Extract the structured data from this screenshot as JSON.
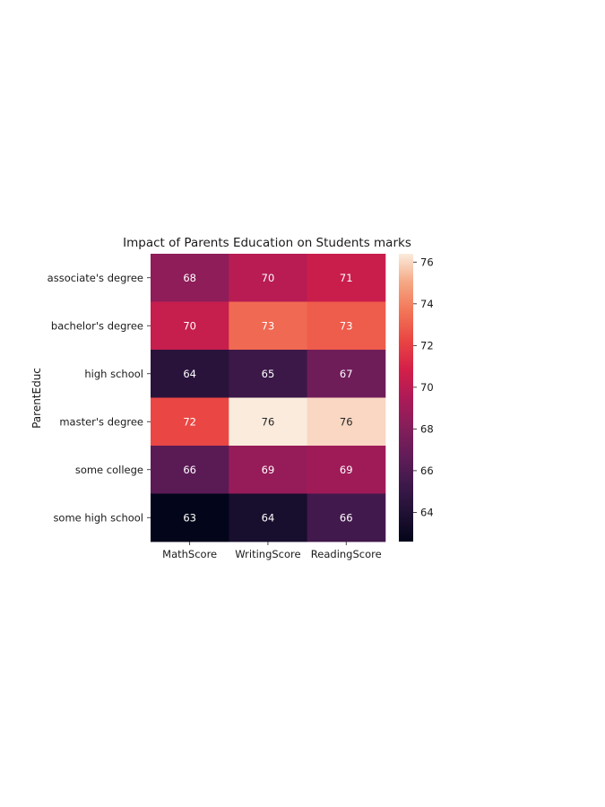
{
  "chart_data": {
    "type": "heatmap",
    "title": "Impact of Parents Education on Students marks",
    "xlabel": "",
    "ylabel": "ParentEduc",
    "columns": [
      "MathScore",
      "WritingScore",
      "ReadingScore"
    ],
    "rows": [
      "associate's degree",
      "bachelor's degree",
      "high school",
      "master's degree",
      "some college",
      "some high school"
    ],
    "values": [
      [
        68.4,
        69.9,
        70.5
      ],
      [
        70.4,
        73.3,
        72.9
      ],
      [
        64.4,
        65.2,
        67.2
      ],
      [
        72.3,
        76.4,
        76.0
      ],
      [
        66.4,
        68.7,
        69.0
      ],
      [
        62.6,
        63.6,
        65.5
      ]
    ],
    "annotations": [
      [
        "68",
        "70",
        "71"
      ],
      [
        "70",
        "73",
        "73"
      ],
      [
        "64",
        "65",
        "67"
      ],
      [
        "72",
        "76",
        "76"
      ],
      [
        "66",
        "69",
        "69"
      ],
      [
        "63",
        "64",
        "66"
      ]
    ],
    "colorbar": {
      "colormap": "rocket",
      "range": [
        62.6,
        76.4
      ],
      "ticks": [
        64,
        66,
        68,
        70,
        72,
        74,
        76
      ],
      "tick_labels": [
        "64",
        "66",
        "68",
        "70",
        "72",
        "74",
        "76"
      ]
    }
  }
}
